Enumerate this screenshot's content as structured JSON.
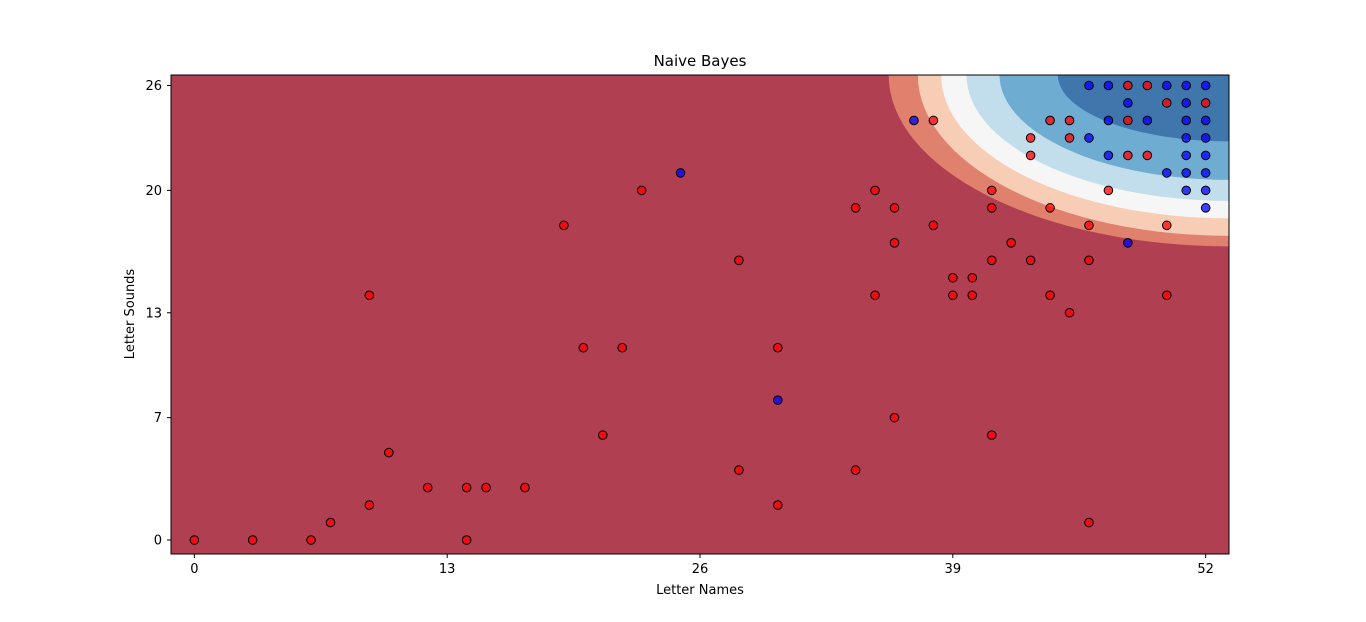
{
  "chart_data": {
    "type": "scatter",
    "title": "Naive Bayes",
    "xlabel": "Letter Names",
    "ylabel": "Letter Sounds",
    "xlim": [
      -1.2,
      53.2
    ],
    "ylim": [
      -0.8,
      26.6
    ],
    "xticks": [
      0,
      13,
      26,
      39,
      52
    ],
    "yticks": [
      0,
      7,
      13,
      20,
      26
    ],
    "grid": false,
    "colors": {
      "background_region": "#b03f52",
      "band_1": "#e0816e",
      "band_2": "#f8cdb5",
      "band_3": "#f6f6f6",
      "band_4": "#c2deec",
      "band_5": "#6facd2",
      "band_6": "#3f76ac",
      "class_red": "#ff0000",
      "class_blue": "#0000ff"
    },
    "series": [
      {
        "color": "#ff0000",
        "points": [
          [
            0,
            0
          ],
          [
            3,
            0
          ],
          [
            6,
            0
          ],
          [
            7,
            1
          ],
          [
            9,
            2
          ],
          [
            9,
            14
          ],
          [
            10,
            5
          ],
          [
            12,
            3
          ],
          [
            14,
            3
          ],
          [
            14,
            0
          ],
          [
            15,
            3
          ],
          [
            17,
            3
          ],
          [
            19,
            18
          ],
          [
            20,
            11
          ],
          [
            21,
            6
          ],
          [
            22,
            11
          ],
          [
            23,
            20
          ],
          [
            28,
            16
          ],
          [
            28,
            4
          ],
          [
            30,
            11
          ],
          [
            30,
            2
          ],
          [
            34,
            19
          ],
          [
            34,
            4
          ],
          [
            35,
            20
          ],
          [
            35,
            14
          ],
          [
            36,
            19
          ],
          [
            36,
            17
          ],
          [
            36,
            7
          ],
          [
            38,
            24
          ],
          [
            38,
            18
          ],
          [
            39,
            15
          ],
          [
            39,
            14
          ],
          [
            40,
            15
          ],
          [
            40,
            14
          ],
          [
            41,
            20
          ],
          [
            41,
            19
          ],
          [
            41,
            16
          ],
          [
            41,
            6
          ],
          [
            42,
            17
          ],
          [
            43,
            23
          ],
          [
            43,
            22
          ],
          [
            43,
            16
          ],
          [
            44,
            24
          ],
          [
            44,
            19
          ],
          [
            44,
            14
          ],
          [
            45,
            24
          ],
          [
            45,
            23
          ],
          [
            45,
            13
          ],
          [
            46,
            18
          ],
          [
            46,
            16
          ],
          [
            46,
            1
          ],
          [
            47,
            20
          ],
          [
            48,
            26
          ],
          [
            48,
            24
          ],
          [
            48,
            22
          ],
          [
            49,
            26
          ],
          [
            49,
            22
          ],
          [
            50,
            25
          ],
          [
            50,
            18
          ],
          [
            50,
            14
          ],
          [
            52,
            25
          ]
        ]
      },
      {
        "color": "#0000ff",
        "points": [
          [
            25,
            21
          ],
          [
            30,
            8
          ],
          [
            37,
            24
          ],
          [
            46,
            26
          ],
          [
            46,
            23
          ],
          [
            47,
            26
          ],
          [
            47,
            24
          ],
          [
            47,
            22
          ],
          [
            48,
            25
          ],
          [
            48,
            17
          ],
          [
            49,
            24
          ],
          [
            50,
            26
          ],
          [
            50,
            21
          ],
          [
            51,
            26
          ],
          [
            51,
            25
          ],
          [
            51,
            23
          ],
          [
            51,
            21
          ],
          [
            51,
            20
          ],
          [
            52,
            26
          ],
          [
            52,
            23
          ],
          [
            52,
            22
          ],
          [
            52,
            21
          ],
          [
            52,
            20
          ],
          [
            52,
            19
          ],
          [
            52,
            24
          ],
          [
            51,
            24
          ],
          [
            51,
            22
          ]
        ]
      }
    ]
  }
}
